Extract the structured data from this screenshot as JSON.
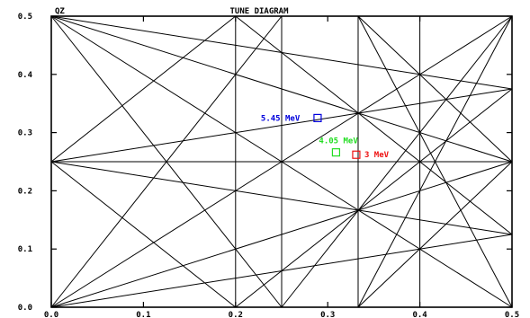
{
  "chart_data": {
    "type": "scatter",
    "title": "TUNE DIAGRAM",
    "ylabel": "QZ",
    "xlabel": "",
    "xlim": [
      0.0,
      0.5
    ],
    "ylim": [
      0.0,
      0.5
    ],
    "x_ticks": [
      0.0,
      0.1,
      0.2,
      0.3,
      0.4,
      0.5
    ],
    "y_ticks": [
      0.0,
      0.1,
      0.2,
      0.3,
      0.4,
      0.5
    ],
    "x_tick_labels": [
      "0.0",
      "0.1",
      "0.2",
      "0.3",
      "0.4",
      "0.5"
    ],
    "y_tick_labels": [
      "0.0",
      "0.1",
      "0.2",
      "0.3",
      "0.4",
      "0.5"
    ],
    "grid": false,
    "resonance_lines": [
      {
        "from": [
          0.2,
          0.0
        ],
        "to": [
          0.2,
          0.5
        ]
      },
      {
        "from": [
          0.25,
          0.0
        ],
        "to": [
          0.25,
          0.5
        ]
      },
      {
        "from": [
          0.4,
          0.0
        ],
        "to": [
          0.4,
          0.5
        ]
      },
      {
        "from": [
          0.0,
          0.25
        ],
        "to": [
          0.5,
          0.25
        ]
      },
      {
        "from": [
          0.0,
          0.0
        ],
        "to": [
          0.5,
          0.5
        ]
      },
      {
        "from": [
          0.0,
          0.5
        ],
        "to": [
          0.5,
          0.25
        ]
      },
      {
        "from": [
          0.0,
          0.5
        ],
        "to": [
          0.5,
          0.0
        ]
      },
      {
        "from": [
          0.0,
          0.5
        ],
        "to": [
          0.25,
          0.0
        ]
      },
      {
        "from": [
          0.0,
          0.5
        ],
        "to": [
          0.5,
          0.375
        ]
      },
      {
        "from": [
          0.0,
          0.0
        ],
        "to": [
          0.5,
          0.25
        ]
      },
      {
        "from": [
          0.0,
          0.0
        ],
        "to": [
          0.5,
          0.125
        ]
      },
      {
        "from": [
          0.0,
          0.0
        ],
        "to": [
          0.25,
          0.5
        ]
      },
      {
        "from": [
          0.0,
          0.25
        ],
        "to": [
          0.5,
          0.125
        ]
      },
      {
        "from": [
          0.0,
          0.25
        ],
        "to": [
          0.5,
          0.375
        ]
      },
      {
        "from": [
          0.0,
          0.25
        ],
        "to": [
          0.2,
          0.5
        ]
      },
      {
        "from": [
          0.0,
          0.25
        ],
        "to": [
          0.2,
          0.0
        ]
      },
      {
        "from": [
          0.333,
          0.0
        ],
        "to": [
          0.333,
          0.5
        ]
      },
      {
        "from": [
          0.333,
          0.0
        ],
        "to": [
          0.5,
          0.25
        ]
      },
      {
        "from": [
          0.333,
          0.5
        ],
        "to": [
          0.5,
          0.25
        ]
      },
      {
        "from": [
          0.2,
          0.5
        ],
        "to": [
          0.5,
          0.125
        ]
      },
      {
        "from": [
          0.2,
          0.0
        ],
        "to": [
          0.5,
          0.375
        ]
      },
      {
        "from": [
          0.333,
          0.0
        ],
        "to": [
          0.5,
          0.5
        ]
      },
      {
        "from": [
          0.333,
          0.5
        ],
        "to": [
          0.5,
          0.0
        ]
      },
      {
        "from": [
          0.25,
          0.0
        ],
        "to": [
          0.5,
          0.5
        ]
      }
    ],
    "series": [
      {
        "name": "5.45 MeV",
        "color": "#0000dd",
        "x": [
          0.289
        ],
        "y": [
          0.325
        ]
      },
      {
        "name": "4.05 MeV",
        "color": "#22dd22",
        "x": [
          0.309
        ],
        "y": [
          0.266
        ]
      },
      {
        "name": "3 MeV",
        "color": "#ee1111",
        "x": [
          0.331
        ],
        "y": [
          0.262
        ]
      }
    ]
  }
}
